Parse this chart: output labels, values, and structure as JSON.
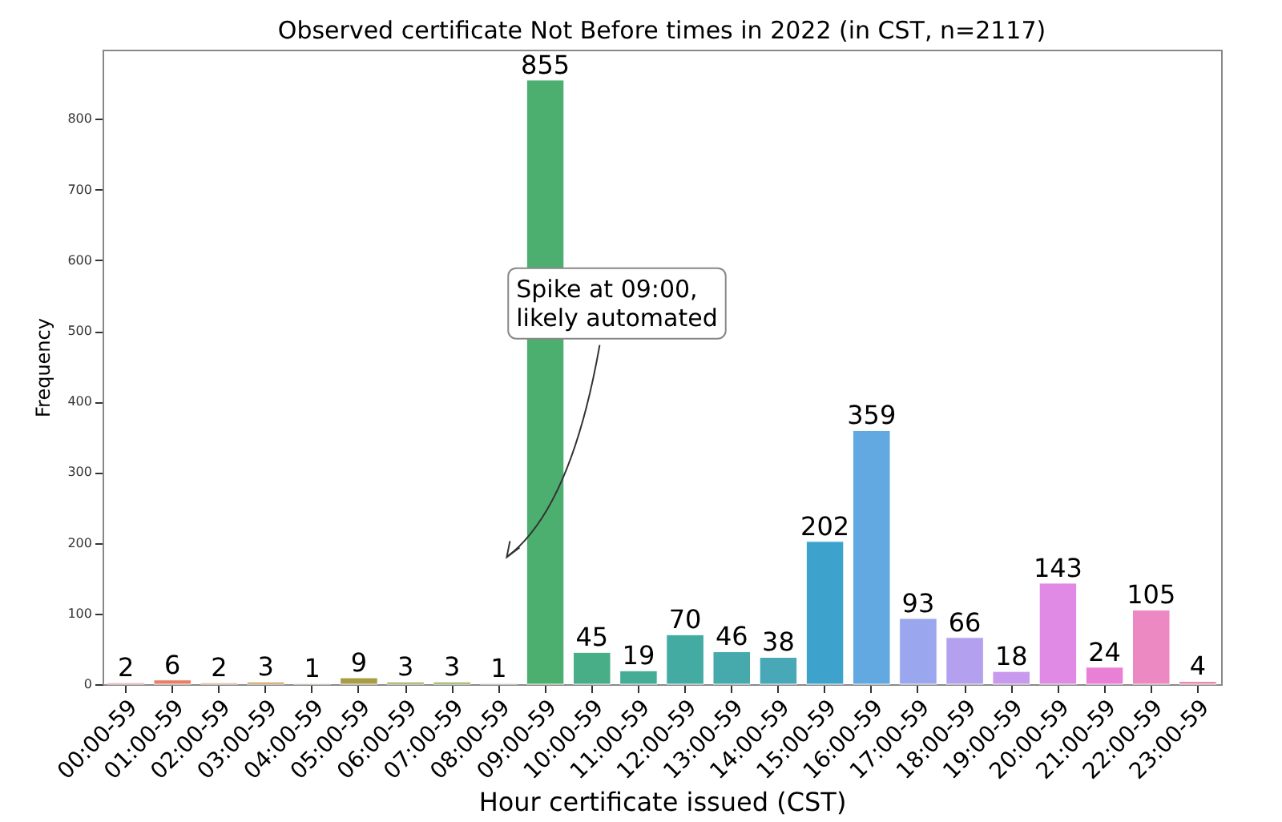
{
  "chart_data": {
    "type": "bar",
    "title": "Observed certificate Not Before times in 2022 (in CST, n=2117)",
    "xlabel": "Hour certificate issued (CST)",
    "ylabel": "Frequency",
    "categories": [
      "00:00-59",
      "01:00-59",
      "02:00-59",
      "03:00-59",
      "04:00-59",
      "05:00-59",
      "06:00-59",
      "07:00-59",
      "08:00-59",
      "09:00-59",
      "10:00-59",
      "11:00-59",
      "12:00-59",
      "13:00-59",
      "14:00-59",
      "15:00-59",
      "16:00-59",
      "17:00-59",
      "18:00-59",
      "19:00-59",
      "20:00-59",
      "21:00-59",
      "22:00-59",
      "23:00-59"
    ],
    "values": [
      2,
      6,
      2,
      3,
      1,
      9,
      3,
      3,
      1,
      855,
      45,
      19,
      70,
      46,
      38,
      202,
      359,
      93,
      66,
      18,
      143,
      24,
      105,
      4
    ],
    "colors": [
      "#e8707f",
      "#e88068",
      "#d88a55",
      "#c8904a",
      "#b8984a",
      "#a89c45",
      "#98a046",
      "#84a548",
      "#64ab4e",
      "#4caf70",
      "#48ae88",
      "#45ac96",
      "#44aba2",
      "#46aaad",
      "#48a8b8",
      "#3ea3cc",
      "#62a9e2",
      "#9aa6ee",
      "#b3a0ee",
      "#c79aee",
      "#e08ae6",
      "#ea80d6",
      "#ec88c2",
      "#ee8aaa"
    ],
    "data_labels": true,
    "ylim": [
      0,
      898
    ],
    "yticks": [
      0,
      100,
      200,
      300,
      400,
      500,
      600,
      700,
      800
    ],
    "grid": false,
    "annotations": [
      "Spike at 09:00,\nlikely automated"
    ]
  }
}
